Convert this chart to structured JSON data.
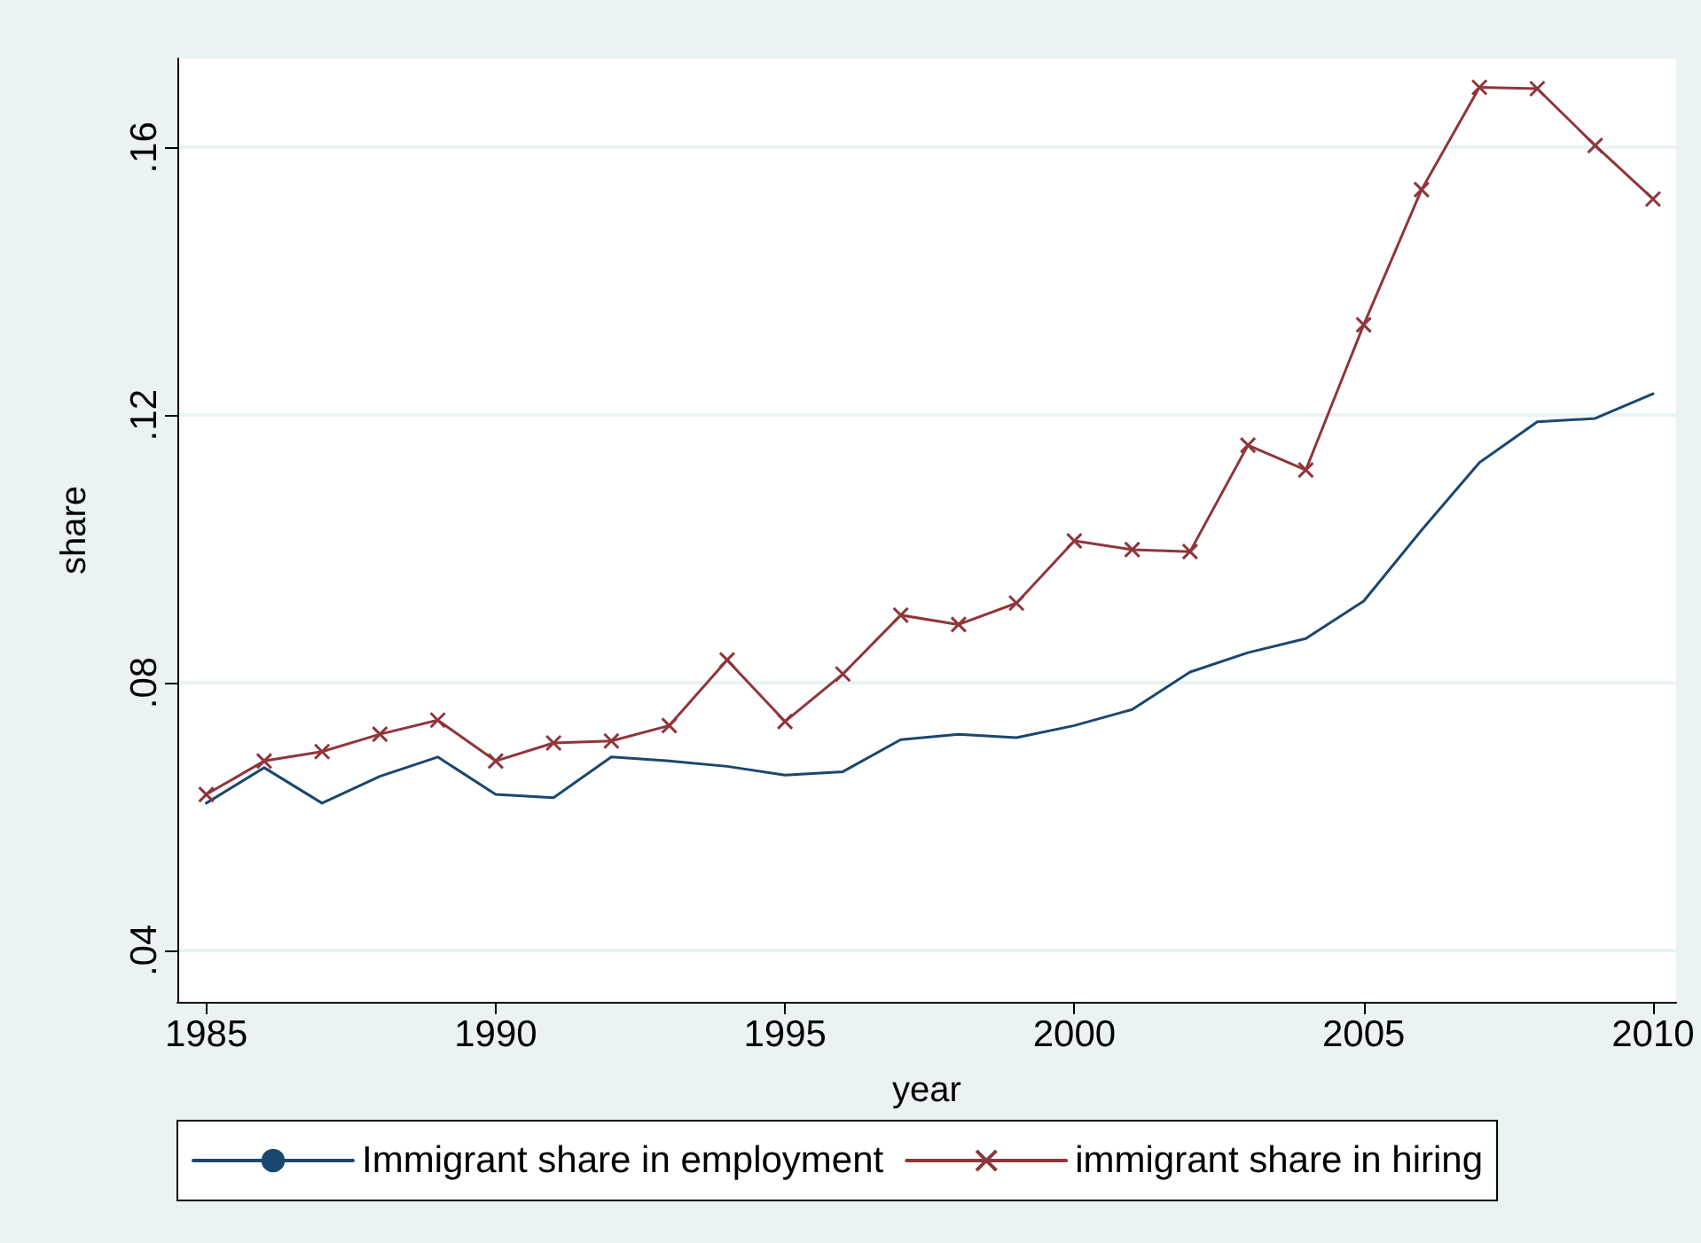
{
  "chart_data": {
    "type": "line",
    "xlabel": "year",
    "ylabel": "share",
    "x": [
      1985,
      1986,
      1987,
      1988,
      1989,
      1990,
      1991,
      1992,
      1993,
      1994,
      1995,
      1996,
      1997,
      1998,
      1999,
      2000,
      2001,
      2002,
      2003,
      2004,
      2005,
      2006,
      2007,
      2008,
      2009,
      2010
    ],
    "series": [
      {
        "name": "Immigrant share in employment",
        "color": "#1a476f",
        "marker": "none",
        "values": [
          0.062,
          0.0673,
          0.062,
          0.066,
          0.0689,
          0.0633,
          0.0628,
          0.0689,
          0.0683,
          0.0675,
          0.0662,
          0.0667,
          0.0715,
          0.0723,
          0.0718,
          0.0736,
          0.076,
          0.0816,
          0.0845,
          0.0866,
          0.0922,
          0.1028,
          0.1129,
          0.119,
          0.1195,
          0.1232
        ]
      },
      {
        "name": "immigrant share in hiring",
        "color": "#90353b",
        "marker": "cross",
        "values": [
          0.0633,
          0.0683,
          0.0697,
          0.0723,
          0.0744,
          0.0683,
          0.071,
          0.0713,
          0.0736,
          0.0834,
          0.0742,
          0.0813,
          0.0901,
          0.0887,
          0.0919,
          0.1012,
          0.0999,
          0.0996,
          0.1155,
          0.1118,
          0.1335,
          0.1537,
          0.169,
          0.1688,
          0.1603,
          0.1523
        ]
      }
    ],
    "xlim": [
      1984.5,
      2010.4
    ],
    "xticks": [
      1985,
      1990,
      1995,
      2000,
      2005,
      2010
    ],
    "ylim": [
      0.0323,
      0.1733
    ],
    "yticks": [
      {
        "value": 0.04,
        "label": ".04"
      },
      {
        "value": 0.08,
        "label": ".08"
      },
      {
        "value": 0.12,
        "label": ".12"
      },
      {
        "value": 0.16,
        "label": ".16"
      }
    ],
    "grid": "y",
    "legend": "bottom",
    "line_style": "solid"
  }
}
